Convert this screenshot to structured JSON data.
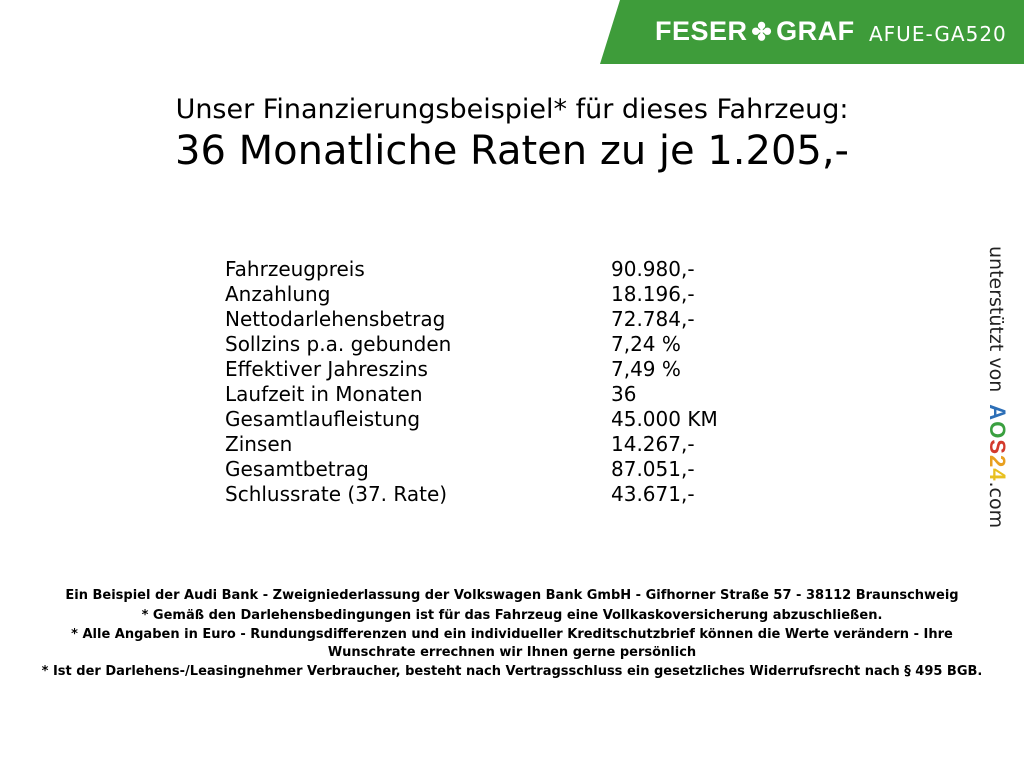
{
  "header": {
    "brand_left": "FESER",
    "brand_right": "GRAF",
    "brand_icon": "clover-icon",
    "code": "AFUE-GA520",
    "banner_color": "#3e9c3a"
  },
  "title": {
    "line1": "Unser Finanzierungsbeispiel* für dieses Fahrzeug:",
    "line2": "36 Monatliche Raten zu je 1.205,-"
  },
  "rows": [
    {
      "label": "Fahrzeugpreis",
      "value": "90.980,-"
    },
    {
      "label": "Anzahlung",
      "value": "18.196,-"
    },
    {
      "label": "Nettodarlehensbetrag",
      "value": "72.784,-"
    },
    {
      "label": "Sollzins p.a. gebunden",
      "value": "7,24 %"
    },
    {
      "label": "Effektiver Jahreszins",
      "value": "7,49 %"
    },
    {
      "label": "Laufzeit in Monaten",
      "value": "36"
    },
    {
      "label": "Gesamtlaufleistung",
      "value": "45.000 KM"
    },
    {
      "label": "Zinsen",
      "value": "14.267,-"
    },
    {
      "label": "Gesamtbetrag",
      "value": "87.051,-"
    },
    {
      "label": "Schlussrate (37. Rate)",
      "value": "43.671,-"
    }
  ],
  "side": {
    "text": "unterstützt von",
    "logo_letters": [
      "A",
      "O",
      "S",
      "2",
      "4"
    ],
    "logo_colors": [
      "#2d6fb7",
      "#3aa040",
      "#d33a2c",
      "#e8a020",
      "#e8c020"
    ],
    "suffix": ".com"
  },
  "footer": [
    "Ein Beispiel der Audi Bank - Zweigniederlassung der Volkswagen Bank GmbH - Gifhorner Straße 57 - 38112 Braunschweig",
    "* Gemäß den Darlehensbedingungen ist für das Fahrzeug eine Vollkaskoversicherung abzuschließen.",
    "* Alle Angaben in Euro - Rundungsdifferenzen und ein individueller Kreditschutzbrief können die Werte verändern - Ihre Wunschrate errechnen wir Ihnen gerne persönlich",
    "* Ist der Darlehens-/Leasingnehmer Verbraucher, besteht nach Vertragsschluss ein gesetzliches Widerrufsrecht nach § 495 BGB."
  ]
}
